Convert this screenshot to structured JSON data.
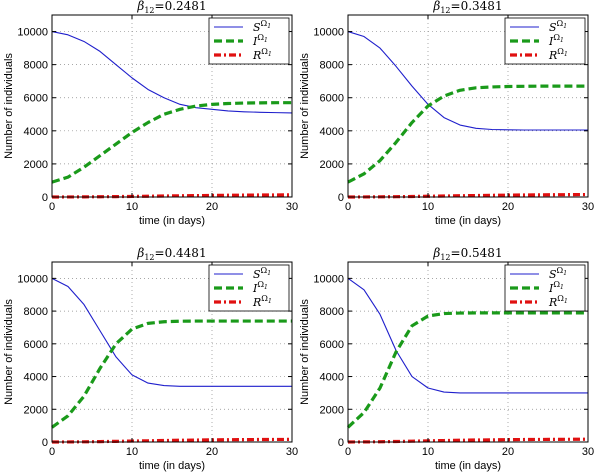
{
  "chart_data": [
    {
      "type": "line",
      "title_symbol": "β",
      "title_subscript": "12",
      "title_value": "=0.2481",
      "xlabel": "time (in days)",
      "ylabel": "Number of individuals",
      "xlim": [
        0,
        30
      ],
      "ylim": [
        0,
        11000
      ],
      "xticks": [
        0,
        10,
        20,
        30
      ],
      "yticks": [
        0,
        2000,
        4000,
        6000,
        8000,
        10000
      ],
      "grid": true,
      "legend_position": "top-right",
      "x": [
        0,
        2,
        4,
        6,
        8,
        10,
        12,
        14,
        16,
        18,
        20,
        22,
        24,
        26,
        28,
        30
      ],
      "series": [
        {
          "name": "S",
          "sup": "Ω",
          "sub": "1",
          "color": "#1f1fcc",
          "style": "solid",
          "values": [
            10000,
            9800,
            9400,
            8800,
            8000,
            7200,
            6500,
            6000,
            5600,
            5400,
            5300,
            5200,
            5150,
            5120,
            5100,
            5080
          ]
        },
        {
          "name": "I",
          "sup": "Ω",
          "sub": "1",
          "color": "#1a9a1a",
          "style": "dash",
          "values": [
            900,
            1200,
            1800,
            2500,
            3200,
            3900,
            4500,
            5000,
            5300,
            5500,
            5600,
            5650,
            5680,
            5690,
            5700,
            5700
          ]
        },
        {
          "name": "R",
          "sup": "Ω",
          "sub": "1",
          "color": "#e01010",
          "style": "dashdot",
          "values": [
            0,
            3,
            8,
            15,
            24,
            35,
            47,
            60,
            72,
            84,
            95,
            105,
            113,
            120,
            126,
            130
          ]
        }
      ]
    },
    {
      "type": "line",
      "title_symbol": "β",
      "title_subscript": "12",
      "title_value": "=0.3481",
      "xlabel": "time (in days)",
      "ylabel": "Number of individuals",
      "xlim": [
        0,
        30
      ],
      "ylim": [
        0,
        11000
      ],
      "xticks": [
        0,
        10,
        20,
        30
      ],
      "yticks": [
        0,
        2000,
        4000,
        6000,
        8000,
        10000
      ],
      "grid": true,
      "legend_position": "top-right",
      "x": [
        0,
        2,
        4,
        6,
        8,
        10,
        12,
        14,
        16,
        18,
        20,
        22,
        24,
        26,
        28,
        30
      ],
      "series": [
        {
          "name": "S",
          "sup": "Ω",
          "sub": "1",
          "color": "#1f1fcc",
          "style": "solid",
          "values": [
            10000,
            9700,
            9000,
            7900,
            6700,
            5600,
            4800,
            4350,
            4150,
            4080,
            4060,
            4050,
            4050,
            4050,
            4050,
            4050
          ]
        },
        {
          "name": "I",
          "sup": "Ω",
          "sub": "1",
          "color": "#1a9a1a",
          "style": "dash",
          "values": [
            900,
            1400,
            2200,
            3300,
            4500,
            5500,
            6100,
            6450,
            6600,
            6650,
            6680,
            6690,
            6700,
            6700,
            6700,
            6700
          ]
        },
        {
          "name": "R",
          "sup": "Ω",
          "sub": "1",
          "color": "#e01010",
          "style": "dashdot",
          "values": [
            0,
            4,
            10,
            19,
            31,
            45,
            60,
            75,
            89,
            102,
            113,
            123,
            131,
            138,
            144,
            148
          ]
        }
      ]
    },
    {
      "type": "line",
      "title_symbol": "β",
      "title_subscript": "12",
      "title_value": "=0.4481",
      "xlabel": "time (in days)",
      "ylabel": "Number of individuals",
      "xlim": [
        0,
        30
      ],
      "ylim": [
        0,
        11000
      ],
      "xticks": [
        0,
        10,
        20,
        30
      ],
      "yticks": [
        0,
        2000,
        4000,
        6000,
        8000,
        10000
      ],
      "grid": true,
      "legend_position": "top-right",
      "x": [
        0,
        2,
        4,
        6,
        8,
        10,
        12,
        14,
        16,
        18,
        20,
        22,
        24,
        26,
        28,
        30
      ],
      "series": [
        {
          "name": "S",
          "sup": "Ω",
          "sub": "1",
          "color": "#1f1fcc",
          "style": "solid",
          "values": [
            10000,
            9500,
            8400,
            6800,
            5200,
            4100,
            3600,
            3450,
            3400,
            3400,
            3400,
            3400,
            3400,
            3400,
            3400,
            3400
          ]
        },
        {
          "name": "I",
          "sup": "Ω",
          "sub": "1",
          "color": "#1a9a1a",
          "style": "dash",
          "values": [
            900,
            1600,
            2800,
            4500,
            6000,
            6900,
            7250,
            7350,
            7380,
            7390,
            7390,
            7390,
            7390,
            7390,
            7390,
            7390
          ]
        },
        {
          "name": "R",
          "sup": "Ω",
          "sub": "1",
          "color": "#e01010",
          "style": "dashdot",
          "values": [
            0,
            5,
            13,
            25,
            40,
            57,
            74,
            91,
            106,
            119,
            130,
            139,
            146,
            152,
            156,
            160
          ]
        }
      ]
    },
    {
      "type": "line",
      "title_symbol": "β",
      "title_subscript": "12",
      "title_value": "=0.5481",
      "xlabel": "time (in days)",
      "ylabel": "Number of individuals",
      "xlim": [
        0,
        30
      ],
      "ylim": [
        0,
        11000
      ],
      "xticks": [
        0,
        10,
        20,
        30
      ],
      "yticks": [
        0,
        2000,
        4000,
        6000,
        8000,
        10000
      ],
      "grid": true,
      "legend_position": "top-right",
      "x": [
        0,
        2,
        4,
        6,
        8,
        10,
        12,
        14,
        16,
        18,
        20,
        22,
        24,
        26,
        28,
        30
      ],
      "series": [
        {
          "name": "S",
          "sup": "Ω",
          "sub": "1",
          "color": "#1f1fcc",
          "style": "solid",
          "values": [
            10000,
            9300,
            7800,
            5600,
            4000,
            3300,
            3050,
            3000,
            3000,
            3000,
            3000,
            3000,
            3000,
            3000,
            3000,
            3000
          ]
        },
        {
          "name": "I",
          "sup": "Ω",
          "sub": "1",
          "color": "#1a9a1a",
          "style": "dash",
          "values": [
            900,
            1800,
            3300,
            5500,
            7100,
            7700,
            7850,
            7880,
            7890,
            7890,
            7890,
            7890,
            7890,
            7890,
            7890,
            7890
          ]
        },
        {
          "name": "R",
          "sup": "Ω",
          "sub": "1",
          "color": "#e01010",
          "style": "dashdot",
          "values": [
            0,
            6,
            16,
            31,
            50,
            70,
            89,
            106,
            121,
            133,
            143,
            151,
            157,
            162,
            166,
            170
          ]
        }
      ]
    }
  ]
}
